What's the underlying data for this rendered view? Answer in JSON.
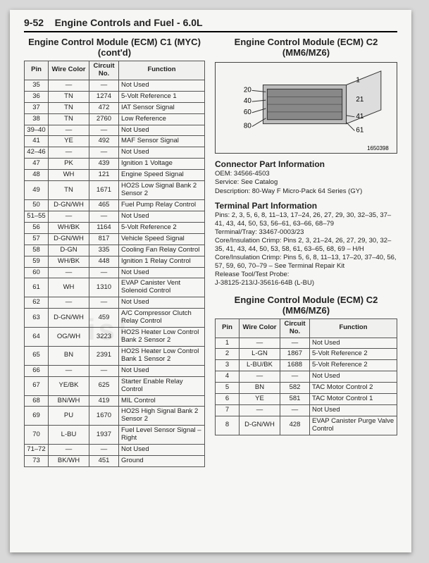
{
  "header": {
    "section": "9-52",
    "title": "Engine Controls and Fuel - 6.0L"
  },
  "left": {
    "title": "Engine Control Module (ECM) C1 (MYC) (cont'd)",
    "cols": [
      "Pin",
      "Wire Color",
      "Circuit No.",
      "Function"
    ],
    "rows": [
      [
        "35",
        "—",
        "—",
        "Not Used"
      ],
      [
        "36",
        "TN",
        "1274",
        "5-Volt Reference 1"
      ],
      [
        "37",
        "TN",
        "472",
        "IAT Sensor Signal"
      ],
      [
        "38",
        "TN",
        "2760",
        "Low Reference"
      ],
      [
        "39–40",
        "—",
        "—",
        "Not Used"
      ],
      [
        "41",
        "YE",
        "492",
        "MAF Sensor Signal"
      ],
      [
        "42–46",
        "—",
        "—",
        "Not Used"
      ],
      [
        "47",
        "PK",
        "439",
        "Ignition 1 Voltage"
      ],
      [
        "48",
        "WH",
        "121",
        "Engine Speed Signal"
      ],
      [
        "49",
        "TN",
        "1671",
        "HO2S Low Signal Bank 2 Sensor 2"
      ],
      [
        "50",
        "D-GN/WH",
        "465",
        "Fuel Pump Relay Control"
      ],
      [
        "51–55",
        "—",
        "—",
        "Not Used"
      ],
      [
        "56",
        "WH/BK",
        "1164",
        "5-Volt Reference 2"
      ],
      [
        "57",
        "D-GN/WH",
        "817",
        "Vehicle Speed Signal"
      ],
      [
        "58",
        "D-GN",
        "335",
        "Cooling Fan Relay Control"
      ],
      [
        "59",
        "WH/BK",
        "448",
        "Ignition 1 Relay Control"
      ],
      [
        "60",
        "—",
        "—",
        "Not Used"
      ],
      [
        "61",
        "WH",
        "1310",
        "EVAP Canister Vent Solenoid Control"
      ],
      [
        "62",
        "—",
        "—",
        "Not Used"
      ],
      [
        "63",
        "D-GN/WH",
        "459",
        "A/C Compressor Clutch Relay Control"
      ],
      [
        "64",
        "OG/WH",
        "3223",
        "HO2S Heater Low Control Bank 2 Sensor 2"
      ],
      [
        "65",
        "BN",
        "2391",
        "HO2S Heater Low Control Bank 1 Sensor 2"
      ],
      [
        "66",
        "—",
        "—",
        "Not Used"
      ],
      [
        "67",
        "YE/BK",
        "625",
        "Starter Enable Relay Control"
      ],
      [
        "68",
        "BN/WH",
        "419",
        "MIL Control"
      ],
      [
        "69",
        "PU",
        "1670",
        "HO2S High Signal Bank 2 Sensor 2"
      ],
      [
        "70",
        "L-BU",
        "1937",
        "Fuel Level Sensor Signal – Right"
      ],
      [
        "71–72",
        "—",
        "—",
        "Not Used"
      ],
      [
        "73",
        "BK/WH",
        "451",
        "Ground"
      ]
    ]
  },
  "right": {
    "title": "Engine Control Module (ECM) C2 (MM6/MZ6)",
    "diagram": {
      "labels": [
        "20",
        "1",
        "40",
        "21",
        "60",
        "41",
        "80",
        "61"
      ],
      "figno": "1650398"
    },
    "connector": {
      "heading": "Connector Part Information",
      "oem": "OEM: 34566-4503",
      "service": "Service: See Catalog",
      "desc": "Description: 80-Way F Micro-Pack 64 Series (GY)"
    },
    "terminal": {
      "heading": "Terminal Part Information",
      "pins": "Pins: 2, 3, 5, 6, 8, 11–13, 17–24, 26, 27, 29, 30, 32–35, 37–41, 43, 44, 50, 53, 56–61, 63–66, 68–79",
      "tray": "Terminal/Tray: 33467-0003/23",
      "core": "Core/Insulation Crimp: Pins 2, 3, 21–24, 26, 27, 29, 30, 32–35, 41, 43, 44, 50, 53, 58, 61, 63–65, 68, 69 – H/H",
      "core2": "Core/Insulation Crimp: Pins 5, 6, 8, 11–13, 17–20, 37–40, 56, 57, 59, 60, 70–79 – See Terminal Repair Kit",
      "release": "Release Tool/Test Probe:",
      "tool": "J-38125-213/J-35616-64B (L-BU)"
    },
    "table2": {
      "title": "Engine Control Module (ECM) C2 (MM6/MZ6)",
      "cols": [
        "Pin",
        "Wire Color",
        "Circuit No.",
        "Function"
      ],
      "rows": [
        [
          "1",
          "—",
          "—",
          "Not Used"
        ],
        [
          "2",
          "L-GN",
          "1867",
          "5-Volt Reference 2"
        ],
        [
          "3",
          "L-BU/BK",
          "1688",
          "5-Volt Reference 2"
        ],
        [
          "4",
          "—",
          "—",
          "Not Used"
        ],
        [
          "5",
          "BN",
          "582",
          "TAC Motor Control 2"
        ],
        [
          "6",
          "YE",
          "581",
          "TAC Motor Control 1"
        ],
        [
          "7",
          "—",
          "—",
          "Not Used"
        ],
        [
          "8",
          "D-GN/WH",
          "428",
          "EVAP Canister Purge Valve Control"
        ]
      ]
    }
  }
}
